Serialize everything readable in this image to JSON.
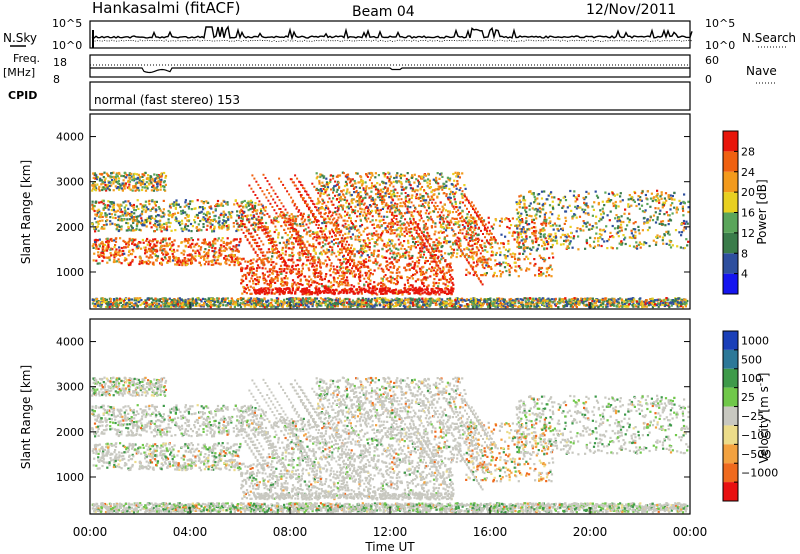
{
  "header": {
    "station": "Hankasalmi (fitACF)",
    "beam": "Beam 04",
    "date": "12/Nov/2011"
  },
  "strip_labels": {
    "nsky": "N.Sky",
    "nsky_hi": "10^5",
    "nsky_lo": "10^0",
    "nsearch": "N.Search",
    "nsearch_hi": "10^5",
    "nsearch_lo": "10^0",
    "freq": "Freq.",
    "freq_unit": "[MHz]",
    "freq_hi": "18",
    "freq_lo": "8",
    "nave": "Nave",
    "nave_hi": "60",
    "nave_lo": "0",
    "cpid": "CPID",
    "mode": "normal (fast stereo) 153"
  },
  "axes": {
    "xlabel": "Time UT",
    "ylabel": "Slant Range [km]",
    "xticks": [
      "00:00",
      "04:00",
      "08:00",
      "12:00",
      "16:00",
      "20:00",
      "00:00"
    ],
    "yticks": [
      "1000",
      "2000",
      "3000",
      "4000"
    ]
  },
  "chart_data": [
    {
      "type": "heatmap",
      "panel": "power",
      "x": [
        "00:00",
        "04:00",
        "08:00",
        "12:00",
        "16:00",
        "20:00",
        "00:00"
      ],
      "xlim_hours": [
        0,
        24
      ],
      "ylim": [
        180,
        4500
      ],
      "colorbar": {
        "label": "Power [dB]",
        "ticks": [
          "4",
          "8",
          "12",
          "16",
          "20",
          "24",
          "28"
        ],
        "values": [
          4,
          8,
          12,
          16,
          20,
          24,
          28
        ],
        "range": [
          0,
          30
        ],
        "colors": [
          "#1515ef",
          "#2e4f9e",
          "#3a7c4a",
          "#5aa55a",
          "#e8d020",
          "#f39a1c",
          "#ef6010",
          "#e8150a"
        ]
      }
    },
    {
      "type": "heatmap",
      "panel": "velocity",
      "x": [
        "00:00",
        "04:00",
        "08:00",
        "12:00",
        "16:00",
        "20:00",
        "00:00"
      ],
      "xlim_hours": [
        0,
        24
      ],
      "ylim": [
        180,
        4500
      ],
      "colorbar": {
        "label": "Velocity [m s",
        "label_sup": "-1",
        "label_end": "]",
        "ticks": [
          "1000",
          "500",
          "100",
          "25",
          "−25",
          "−100",
          "−500",
          "−1000"
        ],
        "colors": [
          "#1a3fb8",
          "#2d7898",
          "#3e9a4a",
          "#70c84a",
          "#c8c8c0",
          "#ecdc8a",
          "#f3a240",
          "#ef6a1e",
          "#e81010"
        ]
      }
    }
  ]
}
